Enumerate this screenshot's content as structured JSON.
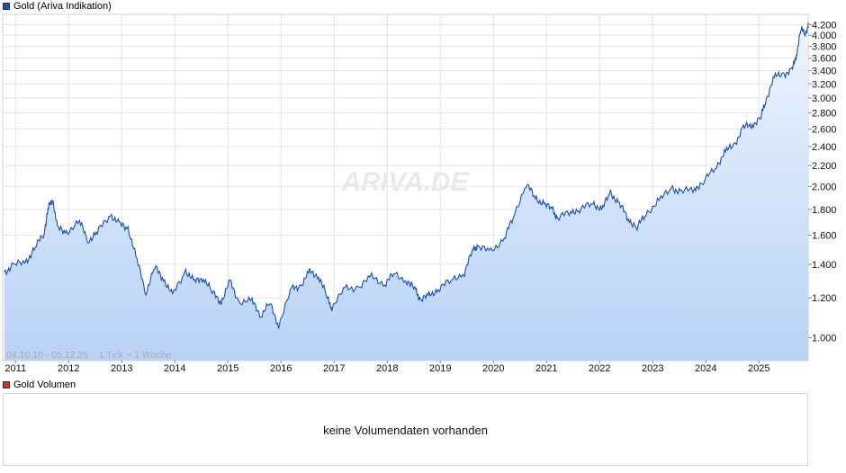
{
  "legend": {
    "price_series": "Gold (Ariva Indikation)",
    "price_color": "#1f4fa8",
    "volume_series": "Gold Volumen",
    "volume_color": "#c0392b"
  },
  "watermark": "ARIVA.DE",
  "range_note": "04.10.10 - 05.12.25    1 Tick = 1 Woche",
  "volume_panel": {
    "message": "keine Volumendaten vorhanden"
  },
  "chart_data": {
    "type": "area",
    "title": "",
    "xlabel": "",
    "ylabel": "",
    "y_scale": "log",
    "ylim": [
      900,
      4400
    ],
    "y_axis_position": "right",
    "y_ticks": [
      1000,
      1200,
      1400,
      1600,
      1800,
      2000,
      2200,
      2400,
      2600,
      2800,
      3000,
      3200,
      3400,
      3600,
      3800,
      4000,
      4200
    ],
    "y_tick_labels": [
      "1.000",
      "1.200",
      "1.400",
      "1.600",
      "1.800",
      "2.000",
      "2.200",
      "2.400",
      "2.600",
      "2.800",
      "3.000",
      "3.200",
      "3.400",
      "3.600",
      "3.800",
      "4.000",
      "4.200"
    ],
    "x_range": [
      "2010-10-04",
      "2025-12-05"
    ],
    "x_tick_labels": [
      "2011",
      "2012",
      "2013",
      "2014",
      "2015",
      "2016",
      "2017",
      "2018",
      "2019",
      "2020",
      "2021",
      "2022",
      "2023",
      "2024",
      "2025"
    ],
    "grid": true,
    "line_color": "#1f4fa8",
    "fill_top_color": "#eef4fd",
    "fill_bottom_color": "#b8d2f6",
    "series": [
      {
        "name": "Gold (Ariva Indikation)",
        "x": [
          "2010-10",
          "2010-12",
          "2011-03",
          "2011-05",
          "2011-07",
          "2011-08",
          "2011-09",
          "2011-10",
          "2011-12",
          "2012-03",
          "2012-05",
          "2012-07",
          "2012-10",
          "2012-12",
          "2013-02",
          "2013-04",
          "2013-06",
          "2013-08",
          "2013-10",
          "2013-12",
          "2014-03",
          "2014-05",
          "2014-07",
          "2014-09",
          "2014-11",
          "2015-01",
          "2015-03",
          "2015-06",
          "2015-08",
          "2015-10",
          "2015-12",
          "2016-03",
          "2016-05",
          "2016-07",
          "2016-09",
          "2016-11",
          "2016-12",
          "2017-03",
          "2017-06",
          "2017-09",
          "2017-12",
          "2018-02",
          "2018-05",
          "2018-07",
          "2018-08",
          "2018-10",
          "2018-12",
          "2019-03",
          "2019-06",
          "2019-08",
          "2019-09",
          "2019-12",
          "2020-03",
          "2020-05",
          "2020-08",
          "2020-10",
          "2020-12",
          "2021-02",
          "2021-03",
          "2021-06",
          "2021-08",
          "2021-11",
          "2022-01",
          "2022-03",
          "2022-05",
          "2022-07",
          "2022-09",
          "2022-11",
          "2023-02",
          "2023-05",
          "2023-07",
          "2023-10",
          "2023-12",
          "2024-03",
          "2024-05",
          "2024-07",
          "2024-09",
          "2024-11",
          "2025-01",
          "2025-02",
          "2025-04",
          "2025-06",
          "2025-08",
          "2025-09",
          "2025-10",
          "2025-11",
          "2025-12"
        ],
        "values": [
          1350,
          1390,
          1420,
          1510,
          1620,
          1820,
          1880,
          1650,
          1620,
          1700,
          1560,
          1620,
          1760,
          1680,
          1650,
          1420,
          1230,
          1380,
          1310,
          1210,
          1360,
          1290,
          1320,
          1230,
          1180,
          1290,
          1180,
          1180,
          1110,
          1170,
          1060,
          1250,
          1270,
          1350,
          1330,
          1200,
          1150,
          1250,
          1260,
          1320,
          1280,
          1340,
          1300,
          1240,
          1190,
          1210,
          1250,
          1300,
          1350,
          1500,
          1520,
          1480,
          1580,
          1730,
          2030,
          1890,
          1850,
          1790,
          1730,
          1780,
          1800,
          1850,
          1800,
          1940,
          1850,
          1720,
          1660,
          1760,
          1880,
          1980,
          1950,
          1980,
          2040,
          2200,
          2350,
          2420,
          2620,
          2650,
          2750,
          2950,
          3300,
          3350,
          3400,
          3650,
          4100,
          4050,
          4200
        ]
      }
    ]
  }
}
